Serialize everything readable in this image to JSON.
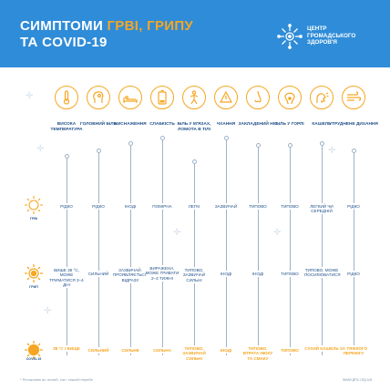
{
  "header": {
    "title_line1_part1": "СИМПТОМИ ",
    "title_line1_part2": "ГРВІ, ГРИПУ",
    "title_line2": "ТА COVID-19",
    "logo_line1": "ЦЕНТР",
    "logo_line2": "ГРОМАДСЬКОГО",
    "logo_line3": "ЗДОРОВ'Я"
  },
  "symptoms": [
    "ВИСОКА ТЕМПЕРАТУРА",
    "ГОЛОВНИЙ БІЛЬ",
    "ВИСНАЖЕННЯ",
    "СЛАБКІСТЬ",
    "БІЛЬ У М'ЯЗАХ, ЛОМОТА В ТІЛІ",
    "ЧХАННЯ",
    "ЗАКЛАДЕНИЙ НІС",
    "БІЛЬ У ГОРЛІ",
    "КАШЕЛЬ",
    "УТРУДНЕНЕ ДИХАННЯ"
  ],
  "rows": [
    {
      "label": "ГРВІ",
      "cells": [
        "РІДКО",
        "РІДКО",
        "ІНОДІ",
        "ПОМІРНА",
        "ЛЕГКІ",
        "ЗАЗВИЧАЙ",
        "ТИПОВО",
        "ТИПОВО",
        "ЛЕГКИЙ ЧИ СЕРЕДНІЙ",
        "РІДКО"
      ]
    },
    {
      "label": "ГРИП",
      "cells": [
        "ВИЩЕ 38 °С, МОЖЕ ТРИМАТИСЯ 3–4 ДНІ",
        "СИЛЬНИЙ",
        "ЗАЗВИЧАЙ, ПРОЯВЛЯЄТЬСЯ ВІДРАЗУ",
        "ВИРАЖЕНА, МОЖЕ ТРИВАТИ 2–3 ТИЖНІ",
        "ТИПОВО, ЗАЗВИЧАЙ СИЛЬНІ",
        "ІНОДІ",
        "ІНОДІ",
        "ТИПОВО",
        "ТИПОВО, МОЖЕ ПОСИЛЮВАТИСЯ",
        "РІДКО"
      ]
    },
    {
      "label": "COVID-19",
      "cells": [
        "38 °С І ВИЩЕ",
        "СИЛЬНИЙ",
        "СИЛЬНЕ",
        "СИЛЬНА",
        "ТИПОВО, ЗАЗВИЧАЙ СИЛЬНІ",
        "ІНОДІ",
        "ТИПОВО, ВТРАТА НЮХУ ТА СМАКУ",
        "ТИПОВО",
        "СУХИЙ КАШЕЛЬ",
        "ЗА ТЯЖКОГО ПЕРЕБІГУ"
      ]
    }
  ],
  "footer": {
    "note": "* Релаксивні як легкий, так і тяжкий перебіг",
    "site": "www.phc.org.ua"
  },
  "colors": {
    "header_bg": "#2f8cd8",
    "accent": "#f6a623",
    "text_dark": "#1f4f8a"
  }
}
